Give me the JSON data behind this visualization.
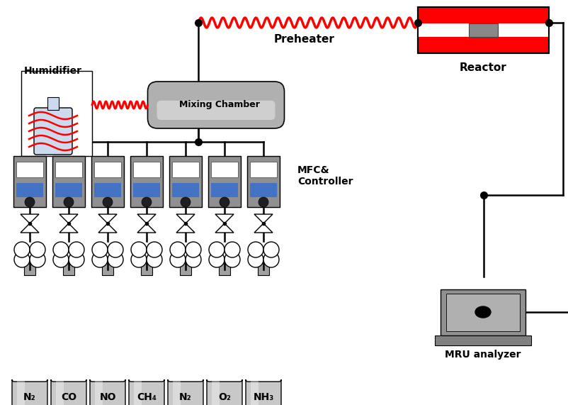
{
  "bg_color": "#ffffff",
  "gas_labels": [
    "N₂",
    "CO",
    "NO",
    "CH₄",
    "N₂",
    "O₂",
    "NH₃"
  ],
  "cylinder_color": "#c8c8c8",
  "cylinder_highlight": "#e8e8e8",
  "cylinder_dark": "#a0a0a0",
  "mfc_body_color": "#909090",
  "mfc_screen_white": "#ffffff",
  "mfc_screen_blue": "#4472c4",
  "mfc_knob_color": "#202020",
  "preheater_color": "#ff0000",
  "reactor_red": "#ff0000",
  "reactor_white": "#ffffff",
  "reactor_gray": "#707070",
  "mixing_color": "#a0a0a0",
  "mixing_highlight": "#d0d0d0",
  "humidifier_flask_color": "#ccdaee",
  "humidifier_box_color": "#ffffff",
  "line_color": "#000000",
  "red_color": "#ff0000",
  "mru_outer": "#909090",
  "mru_inner": "#b0b0b0",
  "mru_base": "#808080",
  "text_preheater": "Preheater",
  "text_reactor": "Reactor",
  "text_humidifier": "Humidifier",
  "text_mixing": "Mixing Chamber",
  "text_mfc": "MFC&\nController",
  "text_mru": "MRU analyzer"
}
